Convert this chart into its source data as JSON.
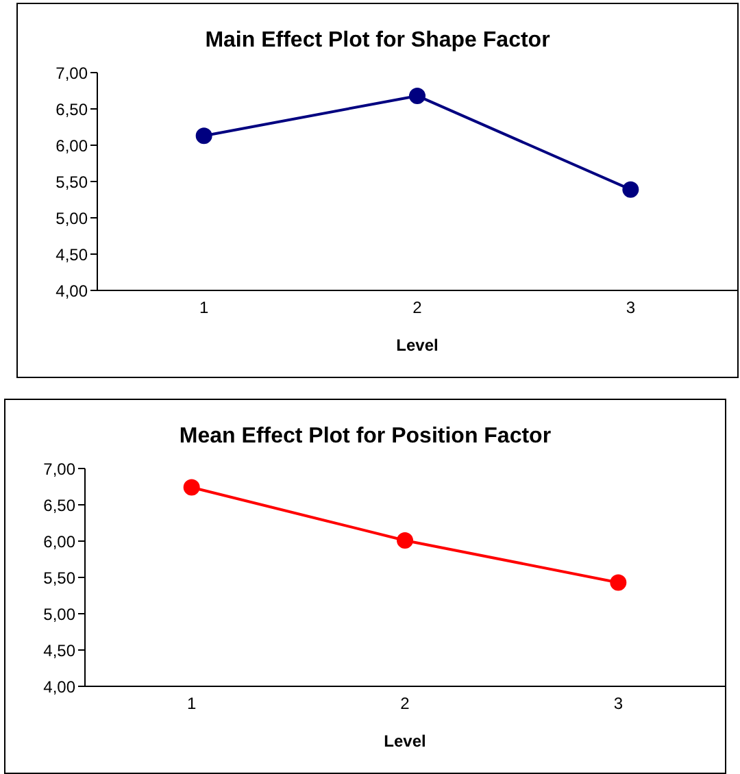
{
  "chart_data": [
    {
      "type": "line",
      "title": "Main Effect Plot for Shape Factor",
      "xlabel": "Level",
      "categories": [
        "1",
        "2",
        "3"
      ],
      "values": [
        6.13,
        6.68,
        5.39
      ],
      "color": "#000080",
      "ylim": [
        4,
        7
      ],
      "yticks": [
        {
          "value": 4,
          "label": "4,00"
        },
        {
          "value": 4.5,
          "label": "4,50"
        },
        {
          "value": 5,
          "label": "5,00"
        },
        {
          "value": 5.5,
          "label": "5,50"
        },
        {
          "value": 6,
          "label": "6,00"
        },
        {
          "value": 6.5,
          "label": "6,50"
        },
        {
          "value": 7,
          "label": "7,00"
        }
      ],
      "marker": "circle",
      "grid": false,
      "legend": false
    },
    {
      "type": "line",
      "title": "Mean Effect Plot for Position Factor",
      "xlabel": "Level",
      "categories": [
        "1",
        "2",
        "3"
      ],
      "values": [
        6.74,
        6.01,
        5.43
      ],
      "color": "#ff0000",
      "ylim": [
        4,
        7
      ],
      "yticks": [
        {
          "value": 4,
          "label": "4,00"
        },
        {
          "value": 4.5,
          "label": "4,50"
        },
        {
          "value": 5,
          "label": "5,00"
        },
        {
          "value": 5.5,
          "label": "5,50"
        },
        {
          "value": 6,
          "label": "6,00"
        },
        {
          "value": 6.5,
          "label": "6,50"
        },
        {
          "value": 7,
          "label": "7,00"
        }
      ],
      "marker": "circle",
      "grid": false,
      "legend": false
    }
  ]
}
